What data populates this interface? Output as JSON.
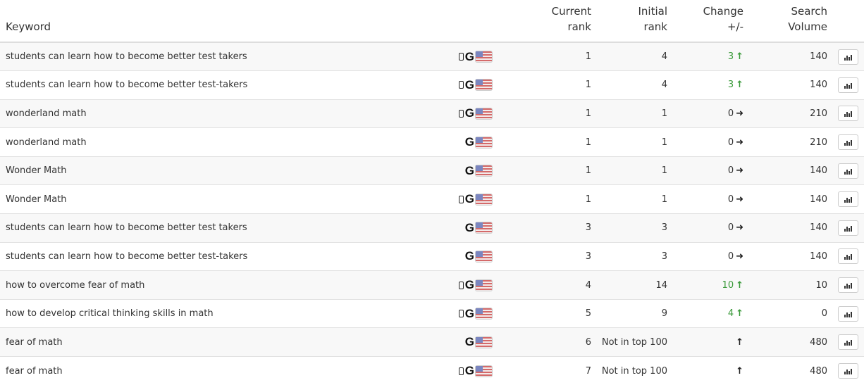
{
  "headers": {
    "keyword": "Keyword",
    "current_rank": [
      "Current",
      "rank"
    ],
    "initial_rank": [
      "Initial",
      "rank"
    ],
    "change": [
      "Change",
      "+/-"
    ],
    "search_volume": [
      "Search",
      "Volume"
    ]
  },
  "colors": {
    "positive": "#3a9a3a",
    "neutral": "#333333"
  },
  "rows": [
    {
      "keyword": "students can learn how to become better test takers",
      "mobile": true,
      "engine": "google-icon",
      "country": "us-flag-icon",
      "current": "1",
      "initial": "4",
      "change": "3",
      "direction": "up",
      "volume": "140"
    },
    {
      "keyword": "students can learn how to become better test-takers",
      "mobile": true,
      "engine": "google-icon",
      "country": "us-flag-icon",
      "current": "1",
      "initial": "4",
      "change": "3",
      "direction": "up",
      "volume": "140"
    },
    {
      "keyword": "wonderland math",
      "mobile": true,
      "engine": "google-icon",
      "country": "us-flag-icon",
      "current": "1",
      "initial": "1",
      "change": "0",
      "direction": "right",
      "volume": "210"
    },
    {
      "keyword": "wonderland math",
      "mobile": false,
      "engine": "google-icon",
      "country": "us-flag-icon",
      "current": "1",
      "initial": "1",
      "change": "0",
      "direction": "right",
      "volume": "210"
    },
    {
      "keyword": "Wonder Math",
      "mobile": false,
      "engine": "google-icon",
      "country": "us-flag-icon",
      "current": "1",
      "initial": "1",
      "change": "0",
      "direction": "right",
      "volume": "140"
    },
    {
      "keyword": "Wonder Math",
      "mobile": true,
      "engine": "google-icon",
      "country": "us-flag-icon",
      "current": "1",
      "initial": "1",
      "change": "0",
      "direction": "right",
      "volume": "140"
    },
    {
      "keyword": "students can learn how to become better test takers",
      "mobile": false,
      "engine": "google-icon",
      "country": "us-flag-icon",
      "current": "3",
      "initial": "3",
      "change": "0",
      "direction": "right",
      "volume": "140"
    },
    {
      "keyword": "students can learn how to become better test-takers",
      "mobile": false,
      "engine": "google-icon",
      "country": "us-flag-icon",
      "current": "3",
      "initial": "3",
      "change": "0",
      "direction": "right",
      "volume": "140"
    },
    {
      "keyword": "how to overcome fear of math",
      "mobile": true,
      "engine": "google-icon",
      "country": "us-flag-icon",
      "current": "4",
      "initial": "14",
      "change": "10",
      "direction": "up",
      "volume": "10"
    },
    {
      "keyword": "how to develop critical thinking skills in math",
      "mobile": true,
      "engine": "google-icon",
      "country": "us-flag-icon",
      "current": "5",
      "initial": "9",
      "change": "4",
      "direction": "up",
      "volume": "0"
    },
    {
      "keyword": "fear of math",
      "mobile": false,
      "engine": "google-icon",
      "country": "us-flag-icon",
      "current": "6",
      "initial": "Not in top 100",
      "change": "",
      "direction": "new",
      "volume": "480"
    },
    {
      "keyword": "fear of math",
      "mobile": true,
      "engine": "google-icon",
      "country": "us-flag-icon",
      "current": "7",
      "initial": "Not in top 100",
      "change": "",
      "direction": "new",
      "volume": "480"
    }
  ]
}
